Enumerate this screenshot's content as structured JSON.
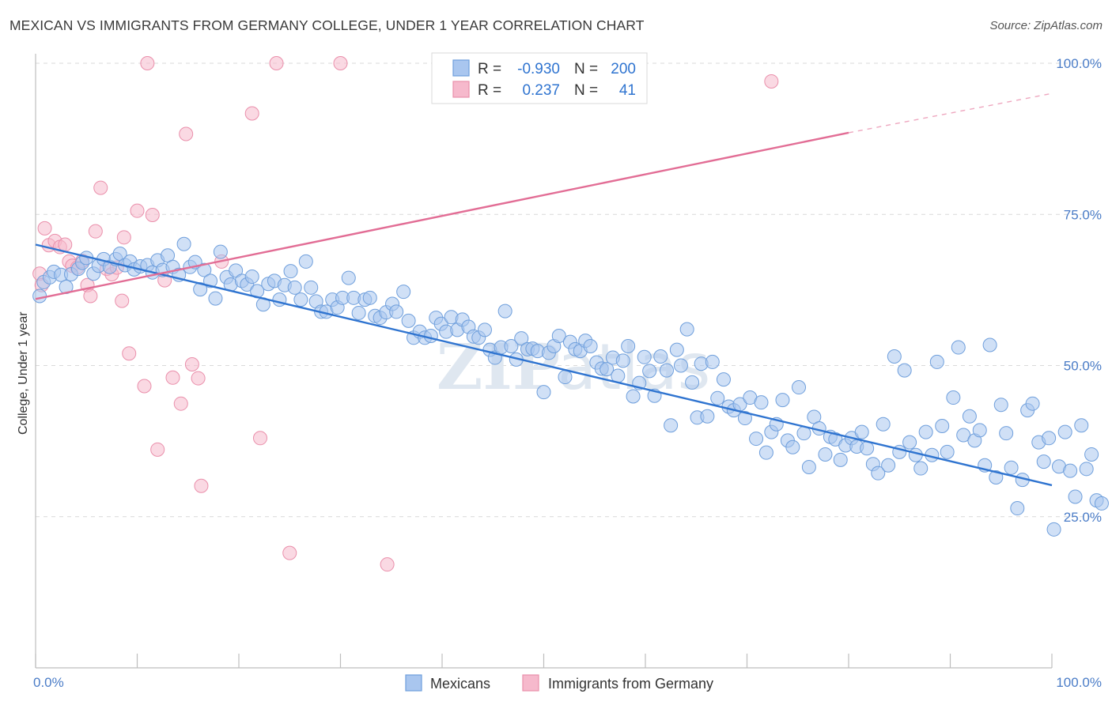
{
  "title": "MEXICAN VS IMMIGRANTS FROM GERMANY COLLEGE, UNDER 1 YEAR CORRELATION CHART",
  "source": "Source: ZipAtlas.com",
  "watermark": {
    "zip": "ZIP",
    "atlas": "atlas"
  },
  "colors": {
    "blue_fill": "#a9c6ef",
    "blue_stroke": "#6f9fdc",
    "blue_line": "#2f74d0",
    "pink_fill": "#f6b9cc",
    "pink_stroke": "#ea8fab",
    "pink_line": "#e26d95",
    "tick_text": "#4a7cc7",
    "grid": "#d9d9d9"
  },
  "legend": {
    "rows": [
      {
        "r_label": "R =",
        "r_value": "-0.930",
        "n_label": "N =",
        "n_value": "200"
      },
      {
        "r_label": "R =",
        "r_value": "0.237",
        "n_label": "N =",
        "n_value": "41"
      }
    ]
  },
  "bottom_legend": [
    "Mexicans",
    "Immigrants from Germany"
  ],
  "chart_data": {
    "type": "scatter",
    "title": "MEXICAN VS IMMIGRANTS FROM GERMANY COLLEGE, UNDER 1 YEAR CORRELATION CHART",
    "xlabel": "",
    "ylabel": "College, Under 1 year",
    "xlim": [
      0,
      100
    ],
    "ylim": [
      0,
      105
    ],
    "x_tick_labels": [
      "0.0%",
      "100.0%"
    ],
    "y_ticks": [
      25,
      50,
      75,
      100
    ],
    "y_tick_labels": [
      "25.0%",
      "50.0%",
      "75.0%",
      "100.0%"
    ],
    "grid": "horizontal dashed",
    "legend_placement": "top-center",
    "series": [
      {
        "name": "Mexicans",
        "color": "#a9c6ef",
        "r": -0.93,
        "n": 200,
        "trend": {
          "x": [
            0,
            100
          ],
          "y": [
            70.0,
            30.2
          ]
        },
        "points": [
          [
            0.4,
            61.5
          ],
          [
            0.8,
            63.8
          ],
          [
            1.4,
            64.6
          ],
          [
            1.8,
            65.5
          ],
          [
            2.5,
            65.0
          ],
          [
            3.0,
            63.0
          ],
          [
            3.5,
            65.1
          ],
          [
            4.2,
            66.0
          ],
          [
            4.6,
            67.0
          ],
          [
            5.0,
            67.8
          ],
          [
            5.7,
            65.2
          ],
          [
            6.2,
            66.5
          ],
          [
            6.7,
            67.6
          ],
          [
            7.3,
            66.3
          ],
          [
            7.9,
            67.6
          ],
          [
            8.3,
            68.5
          ],
          [
            8.8,
            66.6
          ],
          [
            9.3,
            67.2
          ],
          [
            9.7,
            65.9
          ],
          [
            10.3,
            66.4
          ],
          [
            11.0,
            66.6
          ],
          [
            11.5,
            65.4
          ],
          [
            12.0,
            67.4
          ],
          [
            12.5,
            65.8
          ],
          [
            13.0,
            68.2
          ],
          [
            13.5,
            66.3
          ],
          [
            14.1,
            65.0
          ],
          [
            14.6,
            70.1
          ],
          [
            15.2,
            66.3
          ],
          [
            15.7,
            67.1
          ],
          [
            16.2,
            62.6
          ],
          [
            16.6,
            65.8
          ],
          [
            17.2,
            64.0
          ],
          [
            17.7,
            61.1
          ],
          [
            18.2,
            68.8
          ],
          [
            18.8,
            64.6
          ],
          [
            19.2,
            63.4
          ],
          [
            19.7,
            65.7
          ],
          [
            20.3,
            64.0
          ],
          [
            20.8,
            63.4
          ],
          [
            21.3,
            64.7
          ],
          [
            21.8,
            62.3
          ],
          [
            22.4,
            60.1
          ],
          [
            22.9,
            63.5
          ],
          [
            23.5,
            64.0
          ],
          [
            24.0,
            60.9
          ],
          [
            24.5,
            63.3
          ],
          [
            25.1,
            65.6
          ],
          [
            25.5,
            62.9
          ],
          [
            26.1,
            60.9
          ],
          [
            26.6,
            67.2
          ],
          [
            27.1,
            62.9
          ],
          [
            27.6,
            60.6
          ],
          [
            28.1,
            58.9
          ],
          [
            28.6,
            58.9
          ],
          [
            29.2,
            60.9
          ],
          [
            29.7,
            59.6
          ],
          [
            30.2,
            61.2
          ],
          [
            30.8,
            64.5
          ],
          [
            31.3,
            61.2
          ],
          [
            31.8,
            58.7
          ],
          [
            32.4,
            60.9
          ],
          [
            32.9,
            61.2
          ],
          [
            33.4,
            58.2
          ],
          [
            33.9,
            57.9
          ],
          [
            34.5,
            58.8
          ],
          [
            35.1,
            60.2
          ],
          [
            35.5,
            58.9
          ],
          [
            36.2,
            62.2
          ],
          [
            36.7,
            57.4
          ],
          [
            37.2,
            54.6
          ],
          [
            37.8,
            55.6
          ],
          [
            38.3,
            54.6
          ],
          [
            38.9,
            54.9
          ],
          [
            39.4,
            57.9
          ],
          [
            39.9,
            56.9
          ],
          [
            40.4,
            55.6
          ],
          [
            40.9,
            58.0
          ],
          [
            41.5,
            55.9
          ],
          [
            42.0,
            57.6
          ],
          [
            42.6,
            56.4
          ],
          [
            43.1,
            54.8
          ],
          [
            43.6,
            54.6
          ],
          [
            44.2,
            55.9
          ],
          [
            44.7,
            52.6
          ],
          [
            45.2,
            51.3
          ],
          [
            45.8,
            53.0
          ],
          [
            46.2,
            59.0
          ],
          [
            46.8,
            53.2
          ],
          [
            47.3,
            51.0
          ],
          [
            47.8,
            54.5
          ],
          [
            48.4,
            52.7
          ],
          [
            48.9,
            52.8
          ],
          [
            49.4,
            52.4
          ],
          [
            50.0,
            45.6
          ],
          [
            50.5,
            52.1
          ],
          [
            51.0,
            53.2
          ],
          [
            51.5,
            54.9
          ],
          [
            52.1,
            48.1
          ],
          [
            52.6,
            53.9
          ],
          [
            53.1,
            52.7
          ],
          [
            53.6,
            52.4
          ],
          [
            54.1,
            54.1
          ],
          [
            54.6,
            53.2
          ],
          [
            55.2,
            50.5
          ],
          [
            55.7,
            49.5
          ],
          [
            56.2,
            49.4
          ],
          [
            56.8,
            51.3
          ],
          [
            57.3,
            48.3
          ],
          [
            57.8,
            50.8
          ],
          [
            58.3,
            53.2
          ],
          [
            58.8,
            44.9
          ],
          [
            59.4,
            47.1
          ],
          [
            59.9,
            51.4
          ],
          [
            60.4,
            49.1
          ],
          [
            60.9,
            45.0
          ],
          [
            61.5,
            51.5
          ],
          [
            62.1,
            49.2
          ],
          [
            62.5,
            40.1
          ],
          [
            63.1,
            52.6
          ],
          [
            63.5,
            50.0
          ],
          [
            64.1,
            56.0
          ],
          [
            64.6,
            47.2
          ],
          [
            65.1,
            41.4
          ],
          [
            65.5,
            50.3
          ],
          [
            66.1,
            41.6
          ],
          [
            66.6,
            50.6
          ],
          [
            67.1,
            44.6
          ],
          [
            67.7,
            47.7
          ],
          [
            68.2,
            43.2
          ],
          [
            68.7,
            42.6
          ],
          [
            69.3,
            43.6
          ],
          [
            69.8,
            41.3
          ],
          [
            70.3,
            44.7
          ],
          [
            70.9,
            37.9
          ],
          [
            71.4,
            43.9
          ],
          [
            71.9,
            35.6
          ],
          [
            72.4,
            39.0
          ],
          [
            72.9,
            40.3
          ],
          [
            73.5,
            44.3
          ],
          [
            74.0,
            37.6
          ],
          [
            74.5,
            36.5
          ],
          [
            75.1,
            46.4
          ],
          [
            75.6,
            38.8
          ],
          [
            76.1,
            33.2
          ],
          [
            76.6,
            41.5
          ],
          [
            77.1,
            39.6
          ],
          [
            77.7,
            35.3
          ],
          [
            78.2,
            38.2
          ],
          [
            78.7,
            37.8
          ],
          [
            79.2,
            34.4
          ],
          [
            79.7,
            36.8
          ],
          [
            80.3,
            38.0
          ],
          [
            80.8,
            36.6
          ],
          [
            81.3,
            39.0
          ],
          [
            81.8,
            36.3
          ],
          [
            82.4,
            33.7
          ],
          [
            82.9,
            32.2
          ],
          [
            83.4,
            40.3
          ],
          [
            83.9,
            33.5
          ],
          [
            84.5,
            51.5
          ],
          [
            85.0,
            35.7
          ],
          [
            85.5,
            49.2
          ],
          [
            86.0,
            37.3
          ],
          [
            86.6,
            35.2
          ],
          [
            87.1,
            33.0
          ],
          [
            87.6,
            39.0
          ],
          [
            88.2,
            35.2
          ],
          [
            88.7,
            50.6
          ],
          [
            89.2,
            40.0
          ],
          [
            89.7,
            35.7
          ],
          [
            90.3,
            44.7
          ],
          [
            90.8,
            53.0
          ],
          [
            91.3,
            38.5
          ],
          [
            91.9,
            41.6
          ],
          [
            92.4,
            37.6
          ],
          [
            92.9,
            39.3
          ],
          [
            93.4,
            33.5
          ],
          [
            93.9,
            53.4
          ],
          [
            94.5,
            31.5
          ],
          [
            95.0,
            43.5
          ],
          [
            95.5,
            38.8
          ],
          [
            96.0,
            33.1
          ],
          [
            96.6,
            26.4
          ],
          [
            97.1,
            31.1
          ],
          [
            97.6,
            42.6
          ],
          [
            98.1,
            43.7
          ],
          [
            98.7,
            37.3
          ],
          [
            99.2,
            34.1
          ],
          [
            99.7,
            38.0
          ],
          [
            100.2,
            22.9
          ],
          [
            100.7,
            33.3
          ],
          [
            101.3,
            39.0
          ],
          [
            101.8,
            32.6
          ],
          [
            102.3,
            28.3
          ],
          [
            102.9,
            40.1
          ],
          [
            103.4,
            32.9
          ],
          [
            103.9,
            35.3
          ],
          [
            104.4,
            27.7
          ],
          [
            104.9,
            27.2
          ]
        ]
      },
      {
        "name": "Immigrants from Germany",
        "color": "#f6b9cc",
        "r": 0.237,
        "n": 41,
        "trend": {
          "x": [
            0,
            80
          ],
          "y": [
            61.0,
            88.5
          ]
        },
        "trend_extension": {
          "x": [
            80,
            100
          ],
          "y": [
            88.5,
            95.0
          ]
        },
        "points": [
          [
            0.4,
            65.2
          ],
          [
            0.6,
            63.3
          ],
          [
            0.9,
            72.7
          ],
          [
            1.3,
            69.9
          ],
          [
            1.9,
            70.6
          ],
          [
            2.4,
            69.6
          ],
          [
            2.9,
            70.0
          ],
          [
            3.3,
            67.2
          ],
          [
            3.6,
            66.5
          ],
          [
            4.1,
            66.2
          ],
          [
            4.6,
            67.3
          ],
          [
            5.1,
            63.3
          ],
          [
            5.4,
            61.5
          ],
          [
            5.9,
            72.2
          ],
          [
            6.4,
            79.4
          ],
          [
            7.0,
            66.0
          ],
          [
            7.5,
            65.1
          ],
          [
            8.0,
            66.2
          ],
          [
            8.5,
            60.7
          ],
          [
            8.7,
            71.2
          ],
          [
            9.2,
            52.0
          ],
          [
            10.0,
            75.6
          ],
          [
            10.7,
            46.6
          ],
          [
            11.0,
            100.0
          ],
          [
            11.5,
            74.9
          ],
          [
            12.0,
            36.1
          ],
          [
            12.7,
            64.1
          ],
          [
            13.5,
            48.0
          ],
          [
            14.3,
            43.7
          ],
          [
            14.8,
            88.3
          ],
          [
            15.4,
            50.2
          ],
          [
            16.0,
            47.9
          ],
          [
            16.3,
            30.1
          ],
          [
            18.3,
            67.2
          ],
          [
            21.3,
            91.7
          ],
          [
            22.1,
            38.0
          ],
          [
            23.7,
            100.0
          ],
          [
            25.0,
            19.0
          ],
          [
            30.0,
            100.0
          ],
          [
            34.6,
            17.1
          ],
          [
            72.4,
            97.0
          ]
        ]
      }
    ]
  }
}
